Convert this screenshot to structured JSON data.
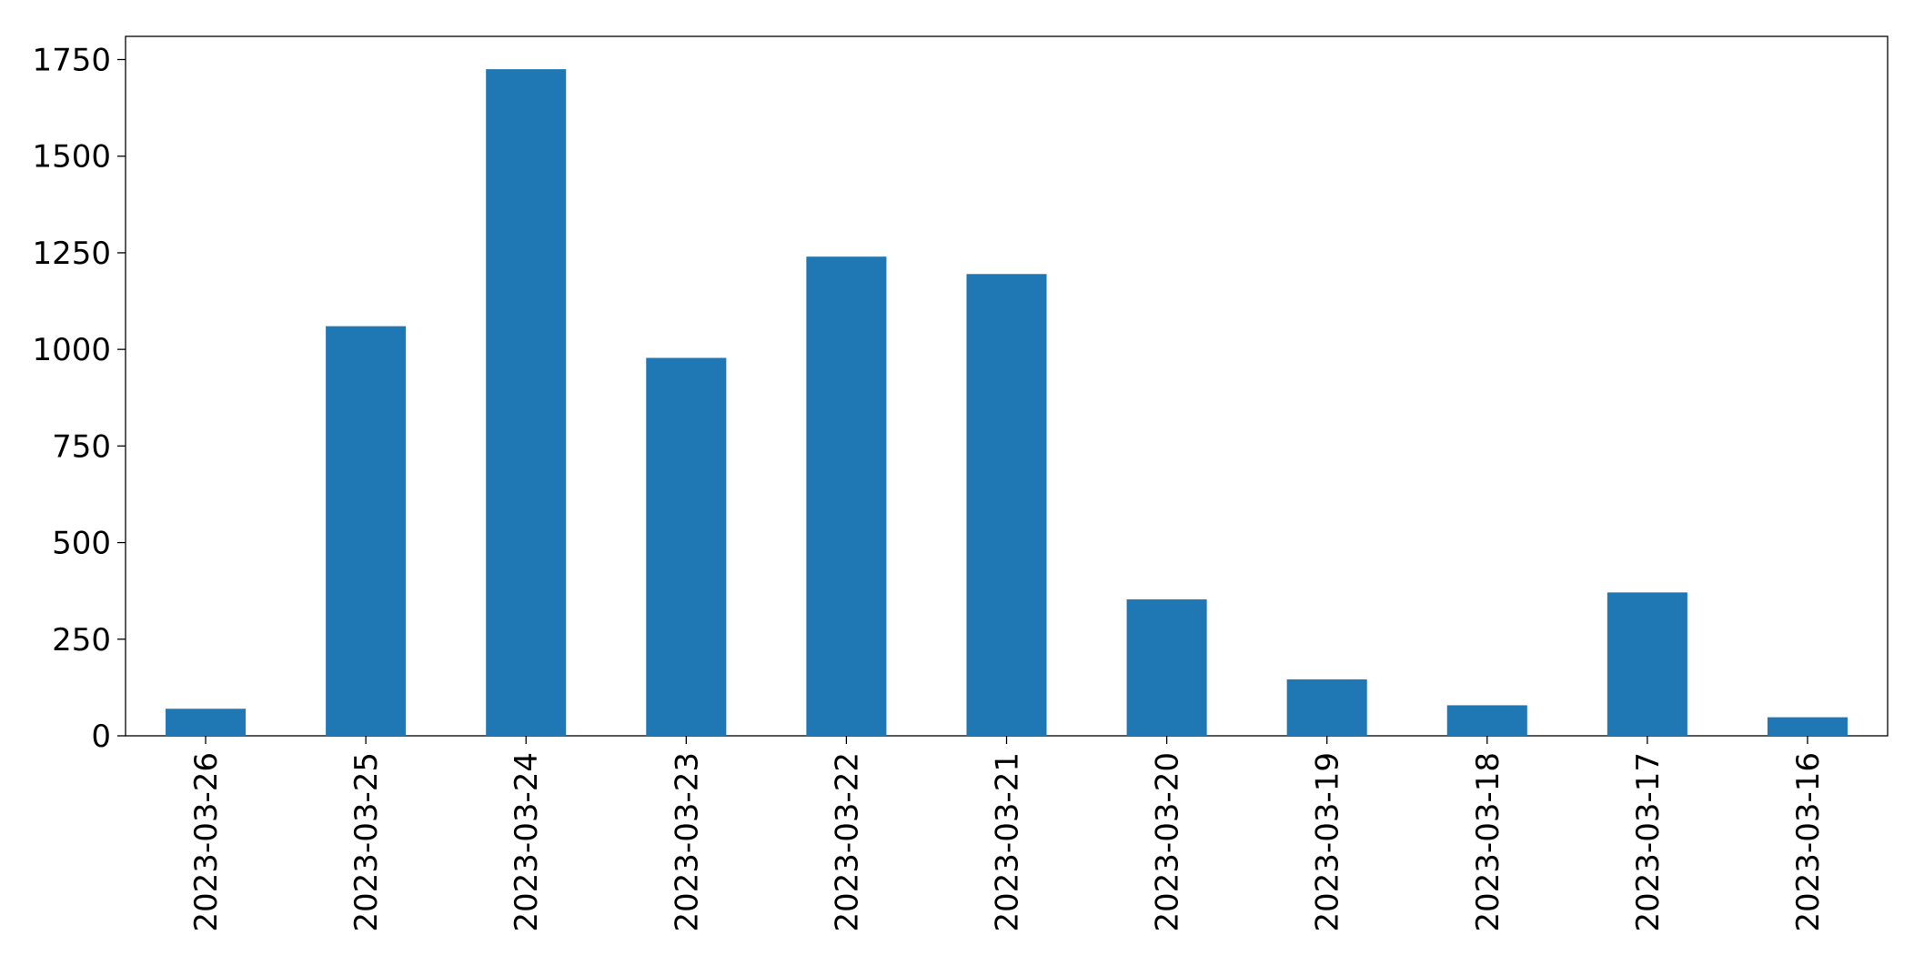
{
  "chart_data": {
    "type": "bar",
    "categories": [
      "2023-03-26",
      "2023-03-25",
      "2023-03-24",
      "2023-03-23",
      "2023-03-22",
      "2023-03-21",
      "2023-03-20",
      "2023-03-19",
      "2023-03-18",
      "2023-03-17",
      "2023-03-16"
    ],
    "values": [
      70,
      1060,
      1725,
      978,
      1240,
      1195,
      353,
      146,
      79,
      371,
      48
    ],
    "color": "#1f77b4",
    "ylim": [
      0,
      1810
    ],
    "yticks": [
      0,
      250,
      500,
      750,
      1000,
      1250,
      1500,
      1750
    ],
    "grid": false
  }
}
